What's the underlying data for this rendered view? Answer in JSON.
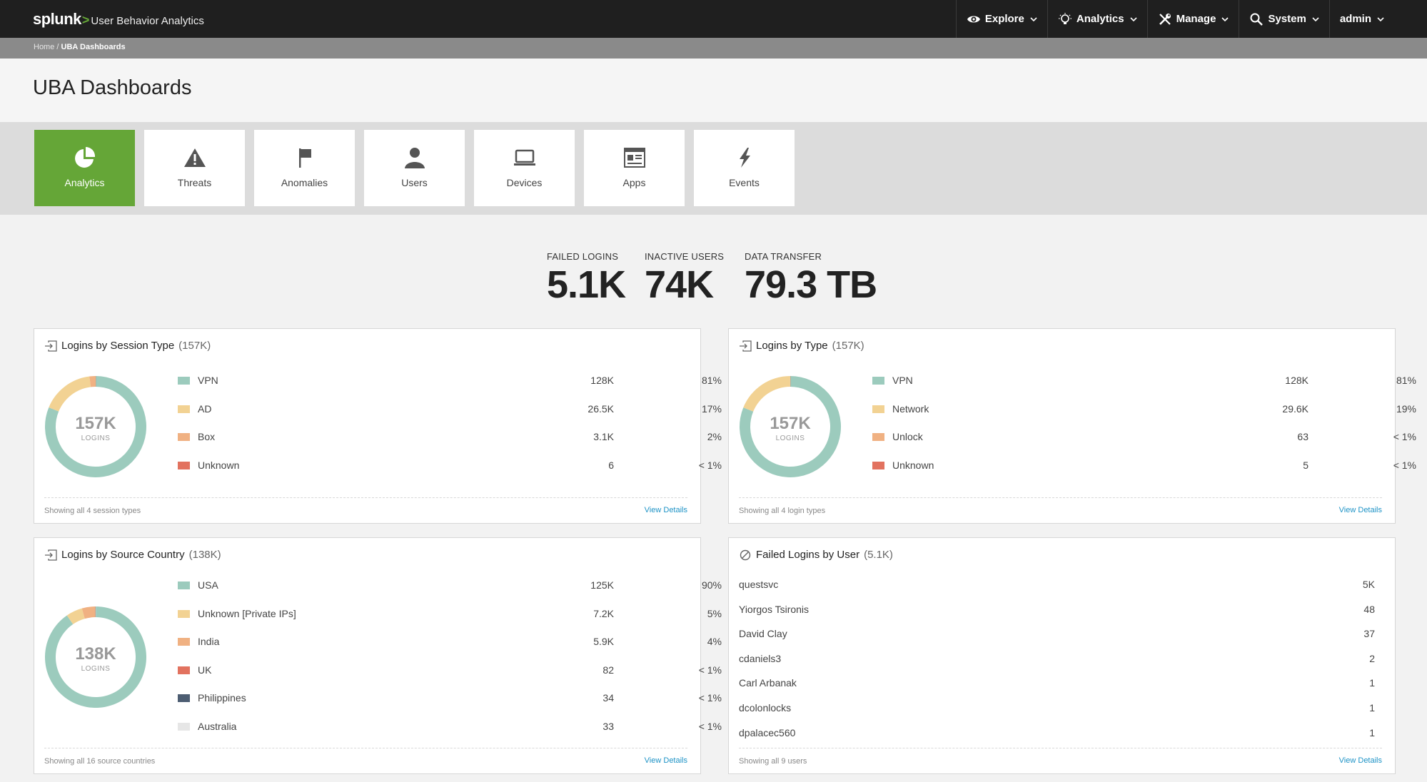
{
  "brand": {
    "logo": "splunk",
    "chevron": ">",
    "app": "User Behavior Analytics"
  },
  "nav": [
    {
      "label": "Explore",
      "icon": "eye-icon"
    },
    {
      "label": "Analytics",
      "icon": "lightbulb-icon"
    },
    {
      "label": "Manage",
      "icon": "tools-icon"
    },
    {
      "label": "System",
      "icon": "search-icon"
    },
    {
      "label": "admin",
      "icon": ""
    }
  ],
  "breadcrumb": {
    "home": "Home",
    "sep": "/",
    "current": "UBA Dashboards"
  },
  "page_title": "UBA Dashboards",
  "tabs": [
    {
      "label": "Analytics",
      "icon": "pie-chart-icon",
      "active": true
    },
    {
      "label": "Threats",
      "icon": "warning-icon",
      "active": false
    },
    {
      "label": "Anomalies",
      "icon": "flag-icon",
      "active": false
    },
    {
      "label": "Users",
      "icon": "user-icon",
      "active": false
    },
    {
      "label": "Devices",
      "icon": "laptop-icon",
      "active": false
    },
    {
      "label": "Apps",
      "icon": "app-window-icon",
      "active": false
    },
    {
      "label": "Events",
      "icon": "lightning-icon",
      "active": false
    }
  ],
  "kpis": [
    {
      "label": "FAILED LOGINS",
      "value": "5.1K"
    },
    {
      "label": "INACTIVE USERS",
      "value": "74K"
    },
    {
      "label": "DATA TRANSFER",
      "value": "79.3 TB"
    }
  ],
  "colors": {
    "accent": "#65a637",
    "series": [
      "#9ccbbd",
      "#f2d293",
      "#f0b182",
      "#e2725f",
      "#4d5d72",
      "#e6e6e6"
    ],
    "link": "#1e93c6"
  },
  "panels": {
    "session_type": {
      "title": "Logins by Session Type",
      "count": "(157K)",
      "center_value": "157K",
      "center_label": "LOGINS",
      "footer": "Showing all 4 session types",
      "link": "View Details",
      "rows": [
        {
          "name": "VPN",
          "value": "128K",
          "pct": "81%"
        },
        {
          "name": "AD",
          "value": "26.5K",
          "pct": "17%"
        },
        {
          "name": "Box",
          "value": "3.1K",
          "pct": "2%"
        },
        {
          "name": "Unknown",
          "value": "6",
          "pct": "< 1%"
        }
      ]
    },
    "login_type": {
      "title": "Logins by Type",
      "count": "(157K)",
      "center_value": "157K",
      "center_label": "LOGINS",
      "footer": "Showing all 4 login types",
      "link": "View Details",
      "rows": [
        {
          "name": "VPN",
          "value": "128K",
          "pct": "81%"
        },
        {
          "name": "Network",
          "value": "29.6K",
          "pct": "19%"
        },
        {
          "name": "Unlock",
          "value": "63",
          "pct": "< 1%"
        },
        {
          "name": "Unknown",
          "value": "5",
          "pct": "< 1%"
        }
      ]
    },
    "source_country": {
      "title": "Logins by Source Country",
      "count": "(138K)",
      "center_value": "138K",
      "center_label": "LOGINS",
      "footer": "Showing all 16 source countries",
      "link": "View Details",
      "rows": [
        {
          "name": "USA",
          "value": "125K",
          "pct": "90%"
        },
        {
          "name": "Unknown [Private IPs]",
          "value": "7.2K",
          "pct": "5%"
        },
        {
          "name": "India",
          "value": "5.9K",
          "pct": "4%"
        },
        {
          "name": "UK",
          "value": "82",
          "pct": "< 1%"
        },
        {
          "name": "Philippines",
          "value": "34",
          "pct": "< 1%"
        },
        {
          "name": "Australia",
          "value": "33",
          "pct": "< 1%"
        }
      ]
    },
    "failed_by_user": {
      "title": "Failed Logins by User",
      "count": "(5.1K)",
      "footer": "Showing all 9 users",
      "link": "View Details",
      "rows": [
        {
          "name": "questsvc",
          "value": "5K"
        },
        {
          "name": "Yiorgos Tsironis",
          "value": "48"
        },
        {
          "name": "David Clay",
          "value": "37"
        },
        {
          "name": "cdaniels3",
          "value": "2"
        },
        {
          "name": "Carl Arbanak",
          "value": "1"
        },
        {
          "name": "dcolonlocks",
          "value": "1"
        },
        {
          "name": "dpalacec560",
          "value": "1"
        }
      ]
    }
  },
  "chart_data": [
    {
      "type": "pie",
      "title": "Logins by Session Type",
      "categories": [
        "VPN",
        "AD",
        "Box",
        "Unknown"
      ],
      "values": [
        128000,
        26500,
        3100,
        6
      ]
    },
    {
      "type": "pie",
      "title": "Logins by Type",
      "categories": [
        "VPN",
        "Network",
        "Unlock",
        "Unknown"
      ],
      "values": [
        128000,
        29600,
        63,
        5
      ]
    },
    {
      "type": "pie",
      "title": "Logins by Source Country",
      "categories": [
        "USA",
        "Unknown [Private IPs]",
        "India",
        "UK",
        "Philippines",
        "Australia"
      ],
      "values": [
        125000,
        7200,
        5900,
        82,
        34,
        33
      ]
    }
  ]
}
